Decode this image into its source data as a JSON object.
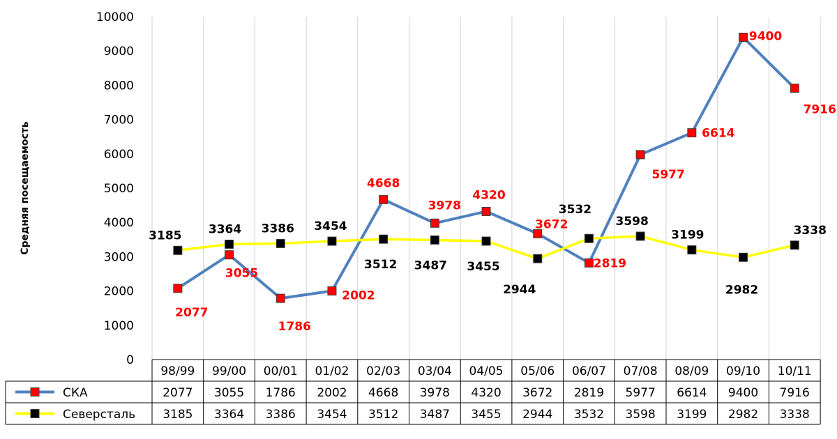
{
  "chart_data": {
    "type": "line",
    "ylabel": "Средняя посещаемость",
    "ylim": [
      0,
      10000
    ],
    "yticks": [
      "0",
      "1000",
      "2000",
      "3000",
      "4000",
      "5000",
      "6000",
      "7000",
      "8000",
      "9000",
      "10000"
    ],
    "categories": [
      "98/99",
      "99/00",
      "00/01",
      "01/02",
      "02/03",
      "03/04",
      "04/05",
      "05/06",
      "06/07",
      "07/08",
      "08/09",
      "09/10",
      "10/11"
    ],
    "grid": "vertical",
    "legend": "data-table",
    "series": [
      {
        "name": "СКА",
        "line_color": "#4f81bd",
        "marker_color": "#ff0000",
        "label_color": "#ff0000",
        "values": [
          2077,
          3055,
          1786,
          2002,
          4668,
          3978,
          4320,
          3672,
          2819,
          5977,
          6614,
          9400,
          7916
        ]
      },
      {
        "name": "Северсталь",
        "line_color": "#ffff00",
        "marker_color": "#000000",
        "label_color": "#000000",
        "values": [
          3185,
          3364,
          3386,
          3454,
          3512,
          3487,
          3455,
          2944,
          3532,
          3598,
          3199,
          2982,
          3338
        ]
      }
    ]
  }
}
